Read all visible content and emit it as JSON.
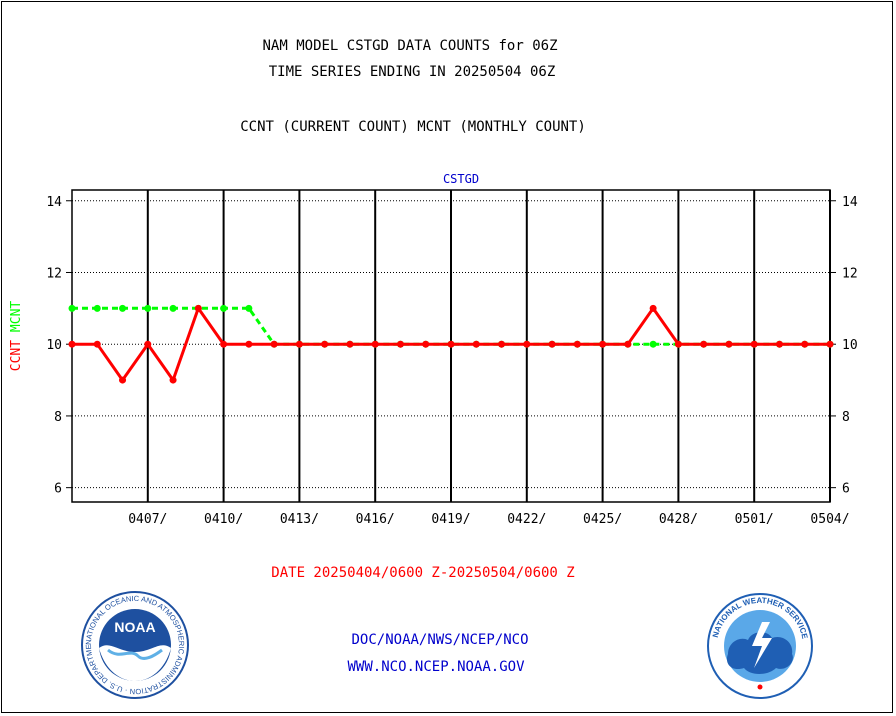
{
  "header": {
    "title_line1": "NAM MODEL CSTGD DATA COUNTS for 06Z",
    "title_line2": "TIME SERIES ENDING IN 20250504 06Z",
    "subtitle": "CCNT (CURRENT COUNT) MCNT (MONTHLY COUNT)"
  },
  "footer": {
    "date_range": "DATE 20250404/0600 Z-20250504/0600 Z",
    "org_path": "DOC/NOAA/NWS/NCEP/NCO",
    "website": "WWW.NCO.NCEP.NOAA.GOV"
  },
  "logos": {
    "noaa_text": "NOAA",
    "noaa_ring": "NATIONAL OCEANIC AND ATMOSPHERIC ADMINISTRATION · U.S. DEPARTMENT OF COMMERCE",
    "nws_ring": "NATIONAL WEATHER SERVICE"
  },
  "colors": {
    "ccnt": "#ff0000",
    "mcnt": "#00ff00",
    "date_text": "#ff0000",
    "link_text": "#0000cc",
    "panel_title": "#0000cc",
    "noaa_blue": "#1e50a0",
    "nws_blue": "#1f5fb4"
  },
  "chart_data": {
    "type": "line",
    "title": "CSTGD",
    "ylabel_parts": [
      {
        "text": "CCNT",
        "color": "#ff0000"
      },
      {
        "text": "MCNT",
        "color": "#00ff00"
      }
    ],
    "xlim": [
      "2025-04-04",
      "2025-05-04"
    ],
    "ylim": [
      5.6,
      14.3
    ],
    "yticks": [
      6,
      8,
      10,
      12,
      14
    ],
    "xticks": [
      {
        "date": "2025-04-07",
        "label": "0407/"
      },
      {
        "date": "2025-04-10",
        "label": "0410/"
      },
      {
        "date": "2025-04-13",
        "label": "0413/"
      },
      {
        "date": "2025-04-16",
        "label": "0416/"
      },
      {
        "date": "2025-04-19",
        "label": "0419/"
      },
      {
        "date": "2025-04-22",
        "label": "0422/"
      },
      {
        "date": "2025-04-25",
        "label": "0425/"
      },
      {
        "date": "2025-04-28",
        "label": "0428/"
      },
      {
        "date": "2025-05-01",
        "label": "0501/"
      },
      {
        "date": "2025-05-04",
        "label": "0504/"
      }
    ],
    "grid": true,
    "x": [
      "2025-04-04",
      "2025-04-05",
      "2025-04-06",
      "2025-04-07",
      "2025-04-08",
      "2025-04-09",
      "2025-04-10",
      "2025-04-11",
      "2025-04-12",
      "2025-04-13",
      "2025-04-14",
      "2025-04-15",
      "2025-04-16",
      "2025-04-17",
      "2025-04-18",
      "2025-04-19",
      "2025-04-20",
      "2025-04-21",
      "2025-04-22",
      "2025-04-23",
      "2025-04-24",
      "2025-04-25",
      "2025-04-26",
      "2025-04-27",
      "2025-04-28",
      "2025-04-29",
      "2025-04-30",
      "2025-05-01",
      "2025-05-02",
      "2025-05-03",
      "2025-05-04"
    ],
    "series": [
      {
        "name": "MCNT",
        "color": "#00ff00",
        "style": "dashed",
        "values": [
          11,
          11,
          11,
          11,
          11,
          11,
          11,
          11,
          10,
          10,
          10,
          10,
          10,
          10,
          10,
          10,
          10,
          10,
          10,
          10,
          10,
          10,
          10,
          10,
          10,
          10,
          10,
          10,
          10,
          10,
          10
        ]
      },
      {
        "name": "CCNT",
        "color": "#ff0000",
        "style": "solid",
        "values": [
          10,
          10,
          9,
          10,
          9,
          11,
          10,
          10,
          10,
          10,
          10,
          10,
          10,
          10,
          10,
          10,
          10,
          10,
          10,
          10,
          10,
          10,
          10,
          11,
          10,
          10,
          10,
          10,
          10,
          10,
          10
        ]
      }
    ]
  }
}
